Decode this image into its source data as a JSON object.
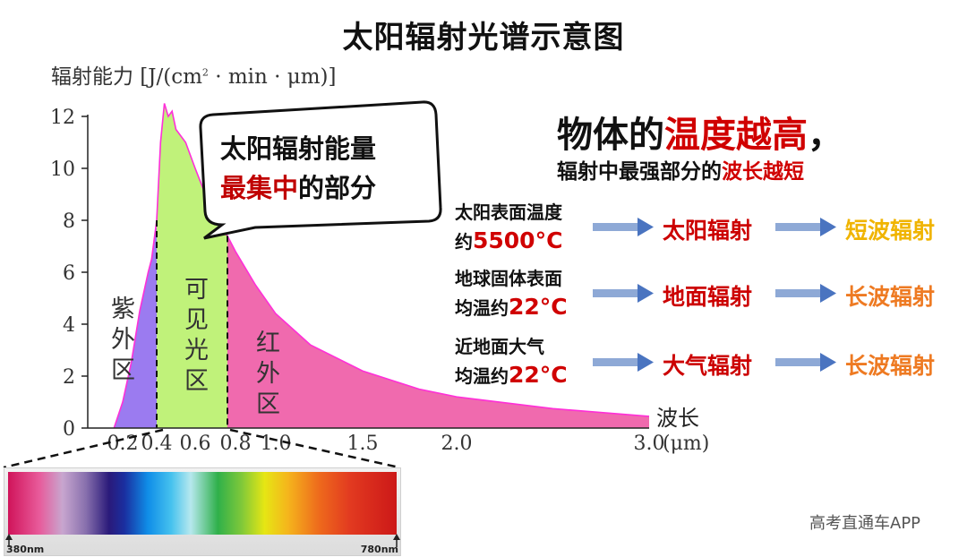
{
  "title": "太阳辐射光谱示意图",
  "y_axis_label": {
    "prefix": "辐射能力 [J/(cm",
    "sup": "2",
    "suffix": " · min · μm)]"
  },
  "x_axis_end_label": "波长",
  "callout": {
    "line1": "太阳辐射能量",
    "line2_red": "最集中",
    "line2_rest": "的部分"
  },
  "regions": {
    "uv": [
      "紫",
      "外",
      "区"
    ],
    "visible": [
      "可",
      "见",
      "光",
      "区"
    ],
    "ir": [
      "红",
      "外",
      "区"
    ]
  },
  "headline": {
    "p1": "物体的",
    "p1_red": "温度越高",
    "p1_end": "，",
    "p2": "辐射中最强部分的",
    "p2_red": "波长越短"
  },
  "rows": [
    {
      "src_l1": "太阳表面温度",
      "src_l2_pre": "约",
      "src_l2_num": "5500°C",
      "radiation": "太阳辐射",
      "result": "短波辐射",
      "result_color": "#f0b400"
    },
    {
      "src_l1": "地球固体表面",
      "src_l2_pre": "均温约",
      "src_l2_num": "22°C",
      "radiation": "地面辐射",
      "result": "长波辐射",
      "result_color": "#ee7a22"
    },
    {
      "src_l1": "近地面大气",
      "src_l2_pre": "均温约",
      "src_l2_num": "22°C",
      "radiation": "大气辐射",
      "result": "长波辐射",
      "result_color": "#ee7a22"
    }
  ],
  "spectrum": {
    "left_label": "380nm",
    "right_label": "780nm"
  },
  "watermark": "高考直通车APP",
  "colors": {
    "uv": "#9b7bf0",
    "visible": "#c0f27a",
    "ir": "#f06aae",
    "outline": "#ff2fd8",
    "red": "#d00000"
  },
  "chart_data": {
    "type": "area",
    "xlabel": "μm",
    "ylabel": "辐射能力 [J/(cm2 · min · μm)]",
    "xlim": [
      0,
      3.0
    ],
    "ylim": [
      0,
      12
    ],
    "x_ticks": [
      "0.2",
      "0.4",
      "0.6",
      "0.8",
      "1.0",
      "1.5",
      "2.0",
      "3.0"
    ],
    "x_tick_values": [
      0.2,
      0.4,
      0.6,
      0.8,
      1.0,
      1.5,
      2.0,
      3.0
    ],
    "x_end_label": "(μm)",
    "y_ticks": [
      0,
      2,
      4,
      6,
      8,
      10,
      12
    ],
    "region_bounds": {
      "uv": [
        0.15,
        0.4
      ],
      "visible": [
        0.4,
        0.76
      ],
      "ir": [
        0.76,
        3.0
      ]
    },
    "grid": false,
    "points": [
      [
        0.15,
        0
      ],
      [
        0.2,
        1.0
      ],
      [
        0.25,
        2.5
      ],
      [
        0.3,
        4.5
      ],
      [
        0.35,
        6.0
      ],
      [
        0.37,
        6.5
      ],
      [
        0.4,
        8.0
      ],
      [
        0.42,
        11.0
      ],
      [
        0.44,
        12.5
      ],
      [
        0.46,
        12.0
      ],
      [
        0.48,
        12.2
      ],
      [
        0.5,
        11.5
      ],
      [
        0.55,
        11.0
      ],
      [
        0.6,
        10.0
      ],
      [
        0.65,
        9.0
      ],
      [
        0.7,
        8.0
      ],
      [
        0.76,
        7.4
      ],
      [
        0.8,
        6.8
      ],
      [
        0.9,
        5.5
      ],
      [
        1.0,
        4.4
      ],
      [
        1.2,
        3.2
      ],
      [
        1.5,
        2.2
      ],
      [
        1.8,
        1.5
      ],
      [
        2.0,
        1.2
      ],
      [
        2.5,
        0.75
      ],
      [
        3.0,
        0.45
      ]
    ]
  }
}
